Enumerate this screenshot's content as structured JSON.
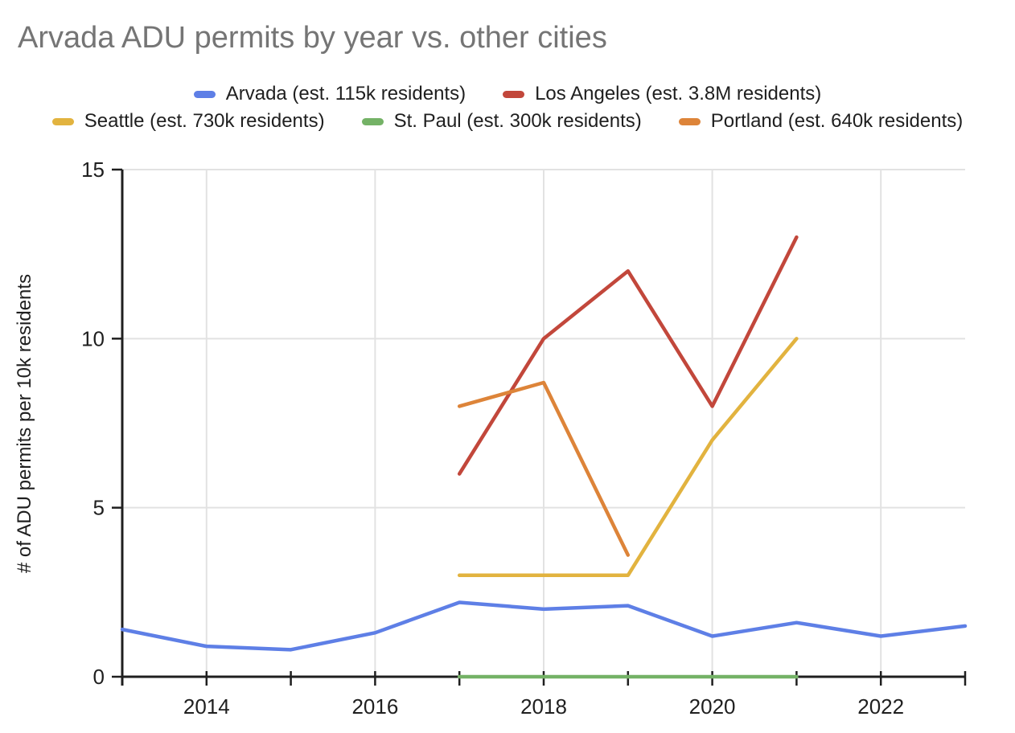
{
  "page": {
    "background": "#ffffff"
  },
  "chart_data": {
    "type": "line",
    "title": "Arvada ADU permits by year vs. other cities",
    "title_color": "#757575",
    "ylabel": "# of ADU permits per 10k residents",
    "xlim": [
      2013,
      2023
    ],
    "ylim": [
      0,
      15
    ],
    "yticks": [
      0,
      5,
      10,
      15
    ],
    "xticks": [
      2013,
      2014,
      2015,
      2016,
      2017,
      2018,
      2019,
      2020,
      2021,
      2022,
      2023
    ],
    "xtick_labels": [
      2014,
      2016,
      2018,
      2020,
      2022
    ],
    "grid": true,
    "grid_color": "#e2e2e2",
    "axis_color": "#1f1f1f",
    "tick_label_color": "#1f1f1f",
    "legend_position": "top",
    "legend_rows": [
      [
        0,
        1
      ],
      [
        2,
        3,
        4
      ]
    ],
    "series": [
      {
        "slug": "arvada",
        "name": "Arvada (est. 115k residents)",
        "color": "#5e7fe6",
        "x": [
          2013,
          2014,
          2015,
          2016,
          2017,
          2018,
          2019,
          2020,
          2021,
          2022,
          2023
        ],
        "values": [
          1.4,
          0.9,
          0.8,
          1.3,
          2.2,
          2.0,
          2.1,
          1.2,
          1.6,
          1.2,
          1.5
        ]
      },
      {
        "slug": "los-angeles",
        "name": "Los Angeles (est. 3.8M residents)",
        "color": "#c2473b",
        "x": [
          2017,
          2018,
          2019,
          2020,
          2021
        ],
        "values": [
          6,
          10,
          12,
          8,
          13
        ]
      },
      {
        "slug": "seattle",
        "name": "Seattle (est. 730k residents)",
        "color": "#e2b33f",
        "x": [
          2017,
          2018,
          2019,
          2020,
          2021
        ],
        "values": [
          3,
          3,
          3,
          7,
          10
        ]
      },
      {
        "slug": "st-paul",
        "name": "St. Paul (est. 300k residents)",
        "color": "#74b266",
        "x": [
          2017,
          2018,
          2019,
          2020,
          2021
        ],
        "values": [
          0,
          0,
          0,
          0,
          0
        ]
      },
      {
        "slug": "portland",
        "name": "Portland (est. 640k residents)",
        "color": "#dd8439",
        "x": [
          2017,
          2018,
          2019
        ],
        "values": [
          8,
          8.7,
          3.6
        ]
      }
    ]
  }
}
